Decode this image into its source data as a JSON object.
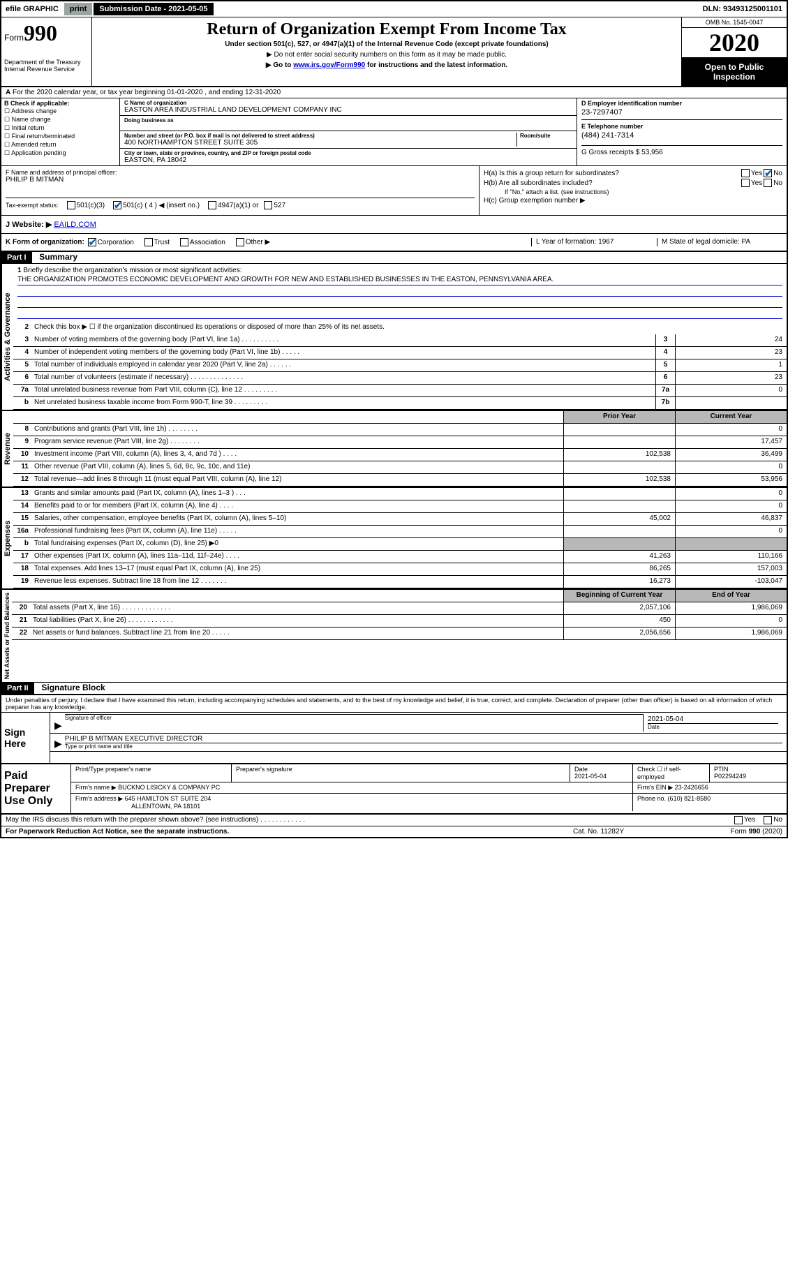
{
  "top_bar": {
    "efile": "efile GRAPHIC",
    "print": "print",
    "subdate_label": "Submission Date - 2021-05-05",
    "dln": "DLN: 93493125001101"
  },
  "header": {
    "form_label": "Form",
    "form_number": "990",
    "title": "Return of Organization Exempt From Income Tax",
    "subtitle": "Under section 501(c), 527, or 4947(a)(1) of the Internal Revenue Code (except private foundations)",
    "note1": "▶ Do not enter social security numbers on this form as it may be made public.",
    "note2_pre": "▶ Go to ",
    "note2_link": "www.irs.gov/Form990",
    "note2_post": " for instructions and the latest information.",
    "dept1": "Department of the Treasury",
    "dept2": "Internal Revenue Service",
    "omb": "OMB No. 1545-0047",
    "year": "2020",
    "open_public": "Open to Public Inspection"
  },
  "row_a": {
    "text": "For the 2020 calendar year, or tax year beginning 01-01-2020    , and ending 12-31-2020"
  },
  "col_b": {
    "label": "B Check if applicable:",
    "opts": [
      "Address change",
      "Name change",
      "Initial return",
      "Final return/terminated",
      "Amended return",
      "Application pending"
    ]
  },
  "col_c": {
    "name_label": "C Name of organization",
    "name": "EASTON AREA INDUSTRIAL LAND DEVELOPMENT COMPANY INC",
    "dba_label": "Doing business as",
    "dba": "",
    "addr_label": "Number and street (or P.O. box if mail is not delivered to street address)",
    "room_label": "Room/suite",
    "addr": "400 NORTHAMPTON STREET SUITE 305",
    "city_label": "City or town, state or province, country, and ZIP or foreign postal code",
    "city": "EASTON, PA  18042"
  },
  "col_d": {
    "ein_label": "D Employer identification number",
    "ein": "23-7297407",
    "tel_label": "E Telephone number",
    "tel": "(484) 241-7314",
    "gross_label": "G Gross receipts $ 53,956"
  },
  "col_f": {
    "label": "F  Name and address of principal officer:",
    "name": "PHILIP B MITMAN"
  },
  "col_h": {
    "ha": "H(a)  Is this a group return for subordinates?",
    "hb": "H(b)  Are all subordinates included?",
    "hb_note": "If \"No,\" attach a list. (see instructions)",
    "hc": "H(c)  Group exemption number ▶",
    "yes": "Yes",
    "no": "No"
  },
  "tax_status": {
    "label": "Tax-exempt status:",
    "o1": "501(c)(3)",
    "o2": "501(c) ( 4 ) ◀ (insert no.)",
    "o3": "4947(a)(1) or",
    "o4": "527"
  },
  "row_j": {
    "label": "J   Website: ▶",
    "val": "EAILD.COM"
  },
  "row_k": {
    "label": "K Form of organization:",
    "o1": "Corporation",
    "o2": "Trust",
    "o3": "Association",
    "o4": "Other ▶",
    "l_label": "L Year of formation: 1967",
    "m_label": "M State of legal domicile: PA"
  },
  "part1": {
    "header": "Part I",
    "title": "Summary",
    "q1": "Briefly describe the organization's mission or most significant activities:",
    "mission": "THE ORGANIZATION PROMOTES ECONOMIC DEVELOPMENT AND GROWTH FOR NEW AND ESTABLISHED BUSINESSES IN THE EASTON, PENNSYLVANIA AREA.",
    "q2": "Check this box ▶ ☐  if the organization discontinued its operations or disposed of more than 25% of its net assets.",
    "lines": [
      {
        "n": "3",
        "t": "Number of voting members of the governing body (Part VI, line 1a)  .  .  .  .  .  .  .  .  .  .",
        "box": "3",
        "v": "24"
      },
      {
        "n": "4",
        "t": "Number of independent voting members of the governing body (Part VI, line 1b)  .  .  .  .  .",
        "box": "4",
        "v": "23"
      },
      {
        "n": "5",
        "t": "Total number of individuals employed in calendar year 2020 (Part V, line 2a)  .  .  .  .  .  .",
        "box": "5",
        "v": "1"
      },
      {
        "n": "6",
        "t": "Total number of volunteers (estimate if necessary)   .  .  .  .  .  .  .  .  .  .  .  .  .  .",
        "box": "6",
        "v": "23"
      },
      {
        "n": "7a",
        "t": "Total unrelated business revenue from Part VIII, column (C), line 12  .  .  .  .  .  .  .  .  .",
        "box": "7a",
        "v": "0"
      },
      {
        "n": "b",
        "t": "Net unrelated business taxable income from Form 990-T, line 39   .  .  .  .  .  .  .  .  .",
        "box": "7b",
        "v": ""
      }
    ],
    "prior_year": "Prior Year",
    "current_year": "Current Year",
    "rev_lines": [
      {
        "n": "8",
        "t": "Contributions and grants (Part VIII, line 1h)  .  .  .  .  .  .  .  .",
        "p": "",
        "c": "0"
      },
      {
        "n": "9",
        "t": "Program service revenue (Part VIII, line 2g)   .  .  .  .  .  .  .  .",
        "p": "",
        "c": "17,457"
      },
      {
        "n": "10",
        "t": "Investment income (Part VIII, column (A), lines 3, 4, and 7d )  .  .  .  .",
        "p": "102,538",
        "c": "36,499"
      },
      {
        "n": "11",
        "t": "Other revenue (Part VIII, column (A), lines 5, 6d, 8c, 9c, 10c, and 11e)",
        "p": "",
        "c": "0"
      },
      {
        "n": "12",
        "t": "Total revenue—add lines 8 through 11 (must equal Part VIII, column (A), line 12)",
        "p": "102,538",
        "c": "53,956"
      }
    ],
    "exp_lines": [
      {
        "n": "13",
        "t": "Grants and similar amounts paid (Part IX, column (A), lines 1–3 )  .  .  .",
        "p": "",
        "c": "0"
      },
      {
        "n": "14",
        "t": "Benefits paid to or for members (Part IX, column (A), line 4)  .  .  .  .",
        "p": "",
        "c": "0"
      },
      {
        "n": "15",
        "t": "Salaries, other compensation, employee benefits (Part IX, column (A), lines 5–10)",
        "p": "45,002",
        "c": "46,837"
      },
      {
        "n": "16a",
        "t": "Professional fundraising fees (Part IX, column (A), line 11e)  .  .  .  .  .",
        "p": "",
        "c": "0"
      },
      {
        "n": "b",
        "t": "Total fundraising expenses (Part IX, column (D), line 25) ▶0",
        "p": "shaded",
        "c": "shaded"
      },
      {
        "n": "17",
        "t": "Other expenses (Part IX, column (A), lines 11a–11d, 11f–24e)  .  .  .  .",
        "p": "41,263",
        "c": "110,166"
      },
      {
        "n": "18",
        "t": "Total expenses. Add lines 13–17 (must equal Part IX, column (A), line 25)",
        "p": "86,265",
        "c": "157,003"
      },
      {
        "n": "19",
        "t": "Revenue less expenses. Subtract line 18 from line 12  .  .  .  .  .  .  .",
        "p": "16,273",
        "c": "-103,047"
      }
    ],
    "begin_year": "Beginning of Current Year",
    "end_year": "End of Year",
    "net_lines": [
      {
        "n": "20",
        "t": "Total assets (Part X, line 16)  .  .  .  .  .  .  .  .  .  .  .  .  .",
        "p": "2,057,106",
        "c": "1,986,069"
      },
      {
        "n": "21",
        "t": "Total liabilities (Part X, line 26)  .  .  .  .  .  .  .  .  .  .  .  .",
        "p": "450",
        "c": "0"
      },
      {
        "n": "22",
        "t": "Net assets or fund balances. Subtract line 21 from line 20  .  .  .  .  .",
        "p": "2,056,656",
        "c": "1,986,069"
      }
    ],
    "vert_activities": "Activities & Governance",
    "vert_revenue": "Revenue",
    "vert_expenses": "Expenses",
    "vert_netassets": "Net Assets or Fund Balances"
  },
  "part2": {
    "header": "Part II",
    "title": "Signature Block",
    "penalties": "Under penalties of perjury, I declare that I have examined this return, including accompanying schedules and statements, and to the best of my knowledge and belief, it is true, correct, and complete. Declaration of preparer (other than officer) is based on all information of which preparer has any knowledge.",
    "sign_here": "Sign Here",
    "sig_officer": "Signature of officer",
    "sig_date": "2021-05-04",
    "date_label": "Date",
    "officer_name": "PHILIP B MITMAN  EXECUTIVE DIRECTOR",
    "type_label": "Type or print name and title",
    "paid_prep": "Paid Preparer Use Only",
    "prep_name_label": "Print/Type preparer's name",
    "prep_sig_label": "Preparer's signature",
    "prep_date": "2021-05-04",
    "check_self": "Check ☐ if self-employed",
    "ptin_label": "PTIN",
    "ptin": "P02294249",
    "firm_name_label": "Firm's name    ▶",
    "firm_name": "BUCKNO LISICKY & COMPANY PC",
    "firm_ein_label": "Firm's EIN ▶",
    "firm_ein": "23-2426656",
    "firm_addr_label": "Firm's address ▶",
    "firm_addr1": "645 HAMILTON ST SUITE 204",
    "firm_addr2": "ALLENTOWN, PA  18101",
    "phone_label": "Phone no.",
    "phone": "(610) 821-8580",
    "may_irs": "May the IRS discuss this return with the preparer shown above? (see instructions)  .  .  .  .  .  .  .  .  .  .  .  .",
    "paperwork": "For Paperwork Reduction Act Notice, see the separate instructions.",
    "catno": "Cat. No. 11282Y",
    "formfoot": "Form 990 (2020)"
  }
}
